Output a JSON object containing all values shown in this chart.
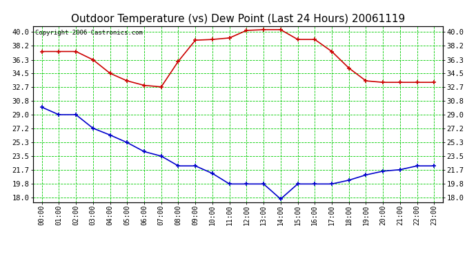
{
  "title": "Outdoor Temperature (vs) Dew Point (Last 24 Hours) 20061119",
  "copyright": "Copyright 2006 Castronics.com",
  "x_labels": [
    "00:00",
    "01:00",
    "02:00",
    "03:00",
    "04:00",
    "05:00",
    "06:00",
    "07:00",
    "08:00",
    "09:00",
    "10:00",
    "11:00",
    "12:00",
    "13:00",
    "14:00",
    "15:00",
    "16:00",
    "17:00",
    "18:00",
    "19:00",
    "20:00",
    "21:00",
    "22:00",
    "23:00"
  ],
  "temp_red": [
    37.4,
    37.4,
    37.4,
    36.3,
    34.5,
    33.5,
    32.9,
    32.7,
    36.1,
    38.9,
    39.0,
    39.2,
    40.2,
    40.3,
    40.3,
    39.0,
    39.0,
    37.4,
    35.2,
    33.5,
    33.3,
    33.3,
    33.3,
    33.3
  ],
  "dew_blue": [
    30.0,
    29.0,
    29.0,
    27.2,
    26.3,
    25.3,
    24.1,
    23.5,
    22.2,
    22.2,
    21.2,
    19.8,
    19.8,
    19.8,
    17.8,
    19.8,
    19.8,
    19.8,
    20.3,
    21.0,
    21.5,
    21.7,
    22.2,
    22.2
  ],
  "y_ticks": [
    18.0,
    19.8,
    21.7,
    23.5,
    25.3,
    27.2,
    29.0,
    30.8,
    32.7,
    34.5,
    36.3,
    38.2,
    40.0
  ],
  "ylim": [
    17.4,
    40.8
  ],
  "bg_color": "#ffffff",
  "plot_bg_color": "#ffffff",
  "grid_color": "#00cc00",
  "red_color": "#cc0000",
  "blue_color": "#0000cc",
  "title_fontsize": 11,
  "copyright_fontsize": 6.5,
  "tick_fontsize": 7.5,
  "xtick_fontsize": 7
}
